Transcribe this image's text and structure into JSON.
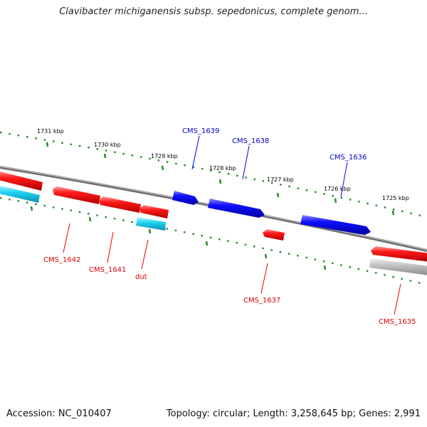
{
  "title": "Clavibacter michiganensis subsp. sepedonicus, complete genom...",
  "footer": {
    "accession": "Accession: NC_010407",
    "summary": "Topology: circular; Length: 3,258,645 bp; Genes: 2,991"
  },
  "colors": {
    "forward_gene": "#0000ee",
    "reverse_gene": "#ee0000",
    "rna_gene": "#11c8ee",
    "pseudo_gene": "#b0b0b0",
    "backbone": "#777777",
    "tick": "#228b22"
  },
  "scale_labels": [
    "1731 kbp",
    "1730 kbp",
    "1729 kbp",
    "1728 kbp",
    "1727 kbp",
    "1726 kbp",
    "1725 kbp"
  ],
  "genes": [
    {
      "label": "CMS_1642",
      "kind": "reverse"
    },
    {
      "label": "CMS_1641",
      "kind": "reverse"
    },
    {
      "label": "dut",
      "kind": "reverse"
    },
    {
      "label": "CMS_1639",
      "kind": "forward"
    },
    {
      "label": "CMS_1638",
      "kind": "forward"
    },
    {
      "label": "CMS_1637",
      "kind": "reverse"
    },
    {
      "label": "CMS_1636",
      "kind": "forward"
    },
    {
      "label": "CMS_1635",
      "kind": "reverse"
    }
  ]
}
